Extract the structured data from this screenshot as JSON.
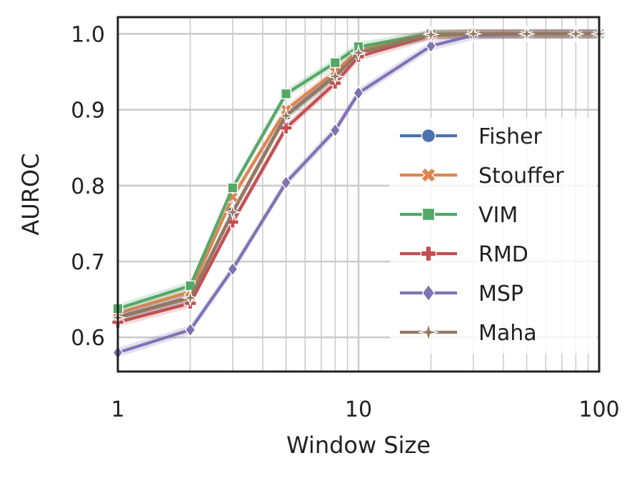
{
  "chart_data": {
    "type": "line",
    "xlabel": "Window Size",
    "ylabel": "AUROC",
    "xscale": "log",
    "xlim": [
      1,
      100
    ],
    "ylim": [
      0.555,
      1.022
    ],
    "xticks": [
      1,
      10,
      100
    ],
    "xtick_labels": [
      "1",
      "10",
      "100"
    ],
    "yticks": [
      0.6,
      0.7,
      0.8,
      0.9,
      1.0
    ],
    "ytick_labels": [
      "0.6",
      "0.7",
      "0.8",
      "0.9",
      "1.0"
    ],
    "grid": true,
    "legend_position": "right",
    "series": [
      {
        "name": "Fisher",
        "color": "#4c72b0",
        "marker": "circle",
        "x": [
          1,
          2,
          3,
          5,
          8,
          10,
          20,
          30,
          50,
          80,
          100
        ],
        "y": [
          0.627,
          0.653,
          0.765,
          0.893,
          0.945,
          0.976,
          0.999,
          1.0,
          1.0,
          1.0,
          1.0
        ]
      },
      {
        "name": "Stouffer",
        "color": "#dd8452",
        "marker": "x",
        "x": [
          1,
          2,
          3,
          5,
          8,
          10,
          20,
          30,
          50,
          80,
          100
        ],
        "y": [
          0.632,
          0.66,
          0.785,
          0.9,
          0.95,
          0.978,
          0.999,
          1.0,
          1.0,
          1.0,
          1.0
        ]
      },
      {
        "name": "VIM",
        "color": "#55a868",
        "marker": "square",
        "x": [
          1,
          2,
          3,
          5,
          8,
          10,
          20,
          30,
          50,
          80,
          100
        ],
        "y": [
          0.638,
          0.668,
          0.797,
          0.921,
          0.962,
          0.983,
          1.0,
          1.0,
          1.0,
          1.0,
          1.0
        ]
      },
      {
        "name": "RMD",
        "color": "#c44e52",
        "marker": "plus",
        "x": [
          1,
          2,
          3,
          5,
          8,
          10,
          20,
          30,
          50,
          80,
          100
        ],
        "y": [
          0.62,
          0.645,
          0.752,
          0.876,
          0.935,
          0.97,
          0.998,
          1.0,
          1.0,
          1.0,
          1.0
        ]
      },
      {
        "name": "MSP",
        "color": "#8172b3",
        "marker": "diamond",
        "x": [
          1,
          2,
          3,
          5,
          8,
          10,
          20,
          30,
          50,
          80,
          100
        ],
        "y": [
          0.58,
          0.61,
          0.69,
          0.804,
          0.873,
          0.922,
          0.984,
          0.998,
          1.0,
          1.0,
          1.0
        ]
      },
      {
        "name": "Maha",
        "color": "#937860",
        "marker": "star",
        "x": [
          1,
          2,
          3,
          5,
          8,
          10,
          20,
          30,
          50,
          80,
          100
        ],
        "y": [
          0.626,
          0.652,
          0.765,
          0.892,
          0.944,
          0.975,
          0.999,
          1.0,
          1.0,
          1.0,
          1.0
        ]
      }
    ]
  }
}
